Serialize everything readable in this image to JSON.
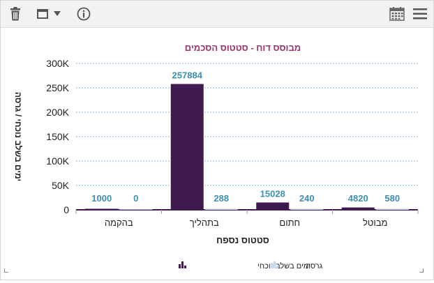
{
  "toolbar": {
    "delete_icon": "trash-icon",
    "window_icon": "window-icon",
    "dropdown_icon": "caret-down-icon",
    "info_icon": "info-icon",
    "calendar_icon": "calendar-icon",
    "menu_icon": "hamburger-menu-icon"
  },
  "chart_data": {
    "type": "bar",
    "title": "מבוסס דוח - סטטוס הסכמים",
    "xlabel": "סטטוס נספח",
    "ylabel": "ימים בשלב נוכחי / גרסה",
    "categories": [
      "בהקמה",
      "בתהליך",
      "חתום",
      "מבוטל"
    ],
    "ylim": [
      0,
      300000
    ],
    "yticks": [
      {
        "value": 0,
        "label": "0"
      },
      {
        "value": 50000,
        "label": "50K"
      },
      {
        "value": 100000,
        "label": "100K"
      },
      {
        "value": 150000,
        "label": "150K"
      },
      {
        "value": 200000,
        "label": "200K"
      },
      {
        "value": 250000,
        "label": "250K"
      },
      {
        "value": 300000,
        "label": "300K"
      }
    ],
    "grid": true,
    "legend_position": "bottom",
    "series": [
      {
        "name": "ימים בשלב נוכחי",
        "color": "#3e1a4f",
        "values": [
          1000,
          257884,
          15028,
          4820
        ]
      },
      {
        "name": "גרסה",
        "color": "#c9d6ee",
        "values": [
          0,
          288,
          240,
          580
        ]
      }
    ],
    "label_color": "#3b8fb0",
    "title_color": "#a0306e"
  }
}
